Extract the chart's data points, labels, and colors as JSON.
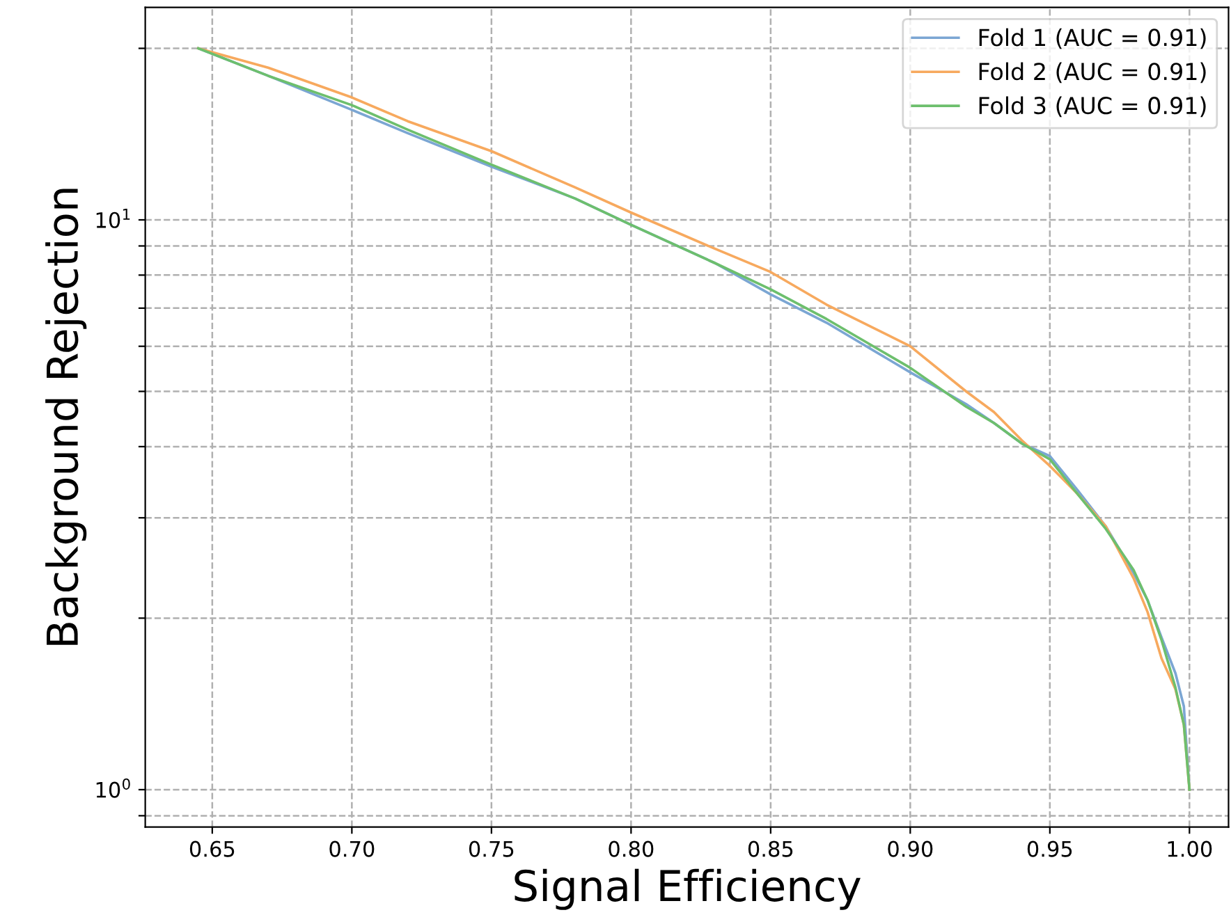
{
  "chart_data": {
    "type": "line",
    "xlabel": "Signal Efficiency",
    "ylabel": "Background Rejection",
    "log": "y",
    "grid": true,
    "legend": "top right",
    "line_style": "solid",
    "marker": "none",
    "xlim": [
      0.626,
      1.014
    ],
    "ylim": [
      0.86,
      23.6
    ],
    "xticks": [
      {
        "value": 0.65,
        "label": "0.65"
      },
      {
        "value": 0.7,
        "label": "0.70"
      },
      {
        "value": 0.75,
        "label": "0.75"
      },
      {
        "value": 0.8,
        "label": "0.80"
      },
      {
        "value": 0.85,
        "label": "0.85"
      },
      {
        "value": 0.9,
        "label": "0.90"
      },
      {
        "value": 0.95,
        "label": "0.95"
      },
      {
        "value": 1.0,
        "label": "1.00"
      }
    ],
    "yticks": [
      {
        "value": 0.9,
        "label": null
      },
      {
        "value": 1,
        "label": "10$^{0}$"
      },
      {
        "value": 2,
        "label": null
      },
      {
        "value": 3,
        "label": null
      },
      {
        "value": 4,
        "label": null
      },
      {
        "value": 5,
        "label": null
      },
      {
        "value": 6,
        "label": null
      },
      {
        "value": 7,
        "label": null
      },
      {
        "value": 8,
        "label": null
      },
      {
        "value": 9,
        "label": null
      },
      {
        "value": 10,
        "label": "10$^{1}$"
      },
      {
        "value": 20,
        "label": null
      }
    ],
    "series": [
      {
        "name": "Fold 1 (AUC = 0.91)",
        "color": "#7ba6d3",
        "x": [
          0.645,
          0.67,
          0.7,
          0.72,
          0.75,
          0.78,
          0.8,
          0.83,
          0.85,
          0.87,
          0.9,
          0.92,
          0.93,
          0.94,
          0.95,
          0.96,
          0.97,
          0.98,
          0.985,
          0.99,
          0.995,
          0.998,
          1.0
        ],
        "values": [
          20,
          17.9,
          15.6,
          14.2,
          12.4,
          10.9,
          9.8,
          8.4,
          7.4,
          6.6,
          5.4,
          4.75,
          4.4,
          4.05,
          3.85,
          3.35,
          2.9,
          2.4,
          2.15,
          1.85,
          1.6,
          1.4,
          1.0
        ]
      },
      {
        "name": "Fold 2 (AUC = 0.91)",
        "color": "#f7a95e",
        "x": [
          0.645,
          0.67,
          0.7,
          0.72,
          0.75,
          0.78,
          0.8,
          0.83,
          0.85,
          0.87,
          0.9,
          0.92,
          0.93,
          0.94,
          0.95,
          0.96,
          0.97,
          0.98,
          0.985,
          0.99,
          0.995,
          0.998,
          1.0
        ],
        "values": [
          20,
          18.5,
          16.4,
          14.9,
          13.2,
          11.4,
          10.3,
          8.9,
          8.1,
          7.1,
          6.0,
          5.0,
          4.6,
          4.1,
          3.7,
          3.3,
          2.9,
          2.35,
          2.05,
          1.7,
          1.5,
          1.3,
          1.0
        ]
      },
      {
        "name": "Fold 3 (AUC = 0.91)",
        "color": "#6dbf6d",
        "x": [
          0.645,
          0.67,
          0.7,
          0.72,
          0.75,
          0.78,
          0.8,
          0.83,
          0.85,
          0.87,
          0.9,
          0.92,
          0.93,
          0.94,
          0.95,
          0.96,
          0.97,
          0.98,
          0.985,
          0.99,
          0.995,
          0.998,
          1.0
        ],
        "values": [
          20,
          17.9,
          15.9,
          14.4,
          12.5,
          10.9,
          9.8,
          8.4,
          7.55,
          6.7,
          5.5,
          4.7,
          4.4,
          4.05,
          3.8,
          3.3,
          2.87,
          2.43,
          2.15,
          1.83,
          1.51,
          1.3,
          1.0
        ]
      }
    ]
  }
}
